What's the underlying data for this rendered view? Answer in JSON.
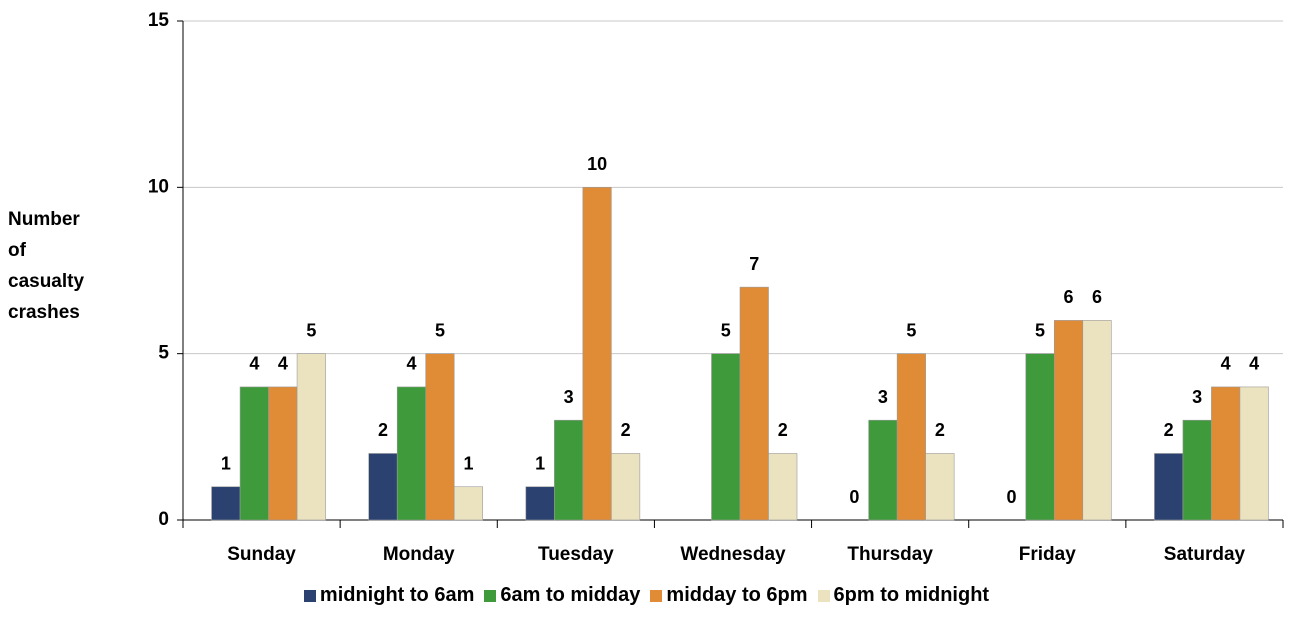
{
  "chart_data": {
    "type": "bar",
    "y_label": "Number of casualty crashes",
    "categories": [
      "Sunday",
      "Monday",
      "Tuesday",
      "Wednesday",
      "Thursday",
      "Friday",
      "Saturday"
    ],
    "series": [
      {
        "name": "midnight to 6am",
        "color": "#2b4170",
        "values": [
          1,
          2,
          1,
          null,
          0,
          0,
          2
        ]
      },
      {
        "name": "6am to midday",
        "color": "#3f9a3b",
        "values": [
          4,
          4,
          3,
          5,
          3,
          5,
          3
        ]
      },
      {
        "name": "midday to 6pm",
        "color": "#e08b36",
        "values": [
          4,
          5,
          10,
          7,
          5,
          6,
          4
        ]
      },
      {
        "name": "6pm to midnight",
        "color": "#ebe3bf",
        "values": [
          5,
          1,
          2,
          2,
          2,
          6,
          4
        ]
      }
    ],
    "ylim": [
      0,
      15
    ],
    "yticks": [
      0,
      5,
      10,
      15
    ],
    "grid": true,
    "legend": "bottom"
  }
}
